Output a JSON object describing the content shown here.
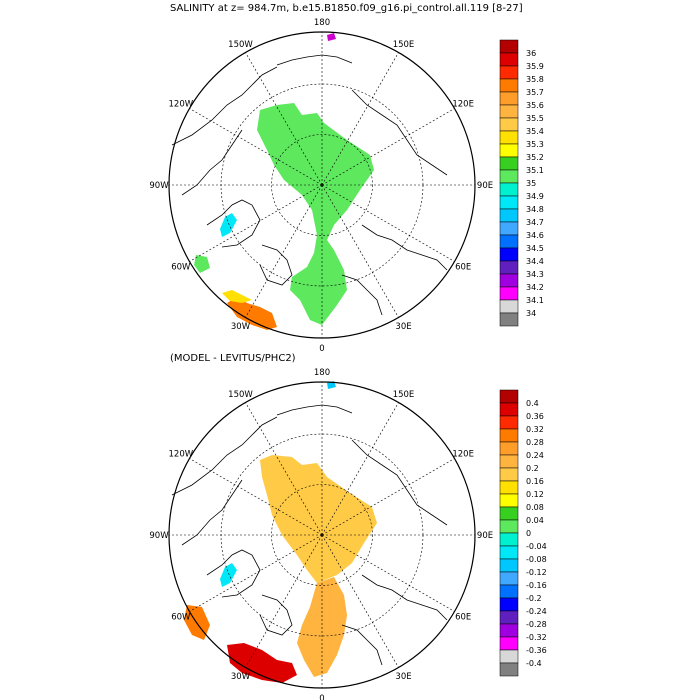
{
  "panels": [
    {
      "title": "SALINITY at z= 984.7m, b.e15.B1850.f09_g16.pi_control.all.119 [8-27]",
      "lon_labels": [
        "180",
        "150E",
        "120E",
        "90E",
        "60E",
        "30E",
        "0",
        "30W",
        "60W",
        "90W",
        "120W",
        "150W"
      ],
      "colorbar": {
        "labels": [
          "36",
          "35.9",
          "35.8",
          "35.7",
          "35.6",
          "35.5",
          "35.4",
          "35.3",
          "35.2",
          "35.1",
          "35",
          "34.9",
          "34.8",
          "34.7",
          "34.6",
          "34.5",
          "34.4",
          "34.3",
          "34.2",
          "34.1",
          "34"
        ],
        "colors": [
          "#b30000",
          "#dd0000",
          "#ff2a00",
          "#ff7b00",
          "#ff9d2a",
          "#ffb440",
          "#ffcb47",
          "#ffe000",
          "#ffff00",
          "#38d020",
          "#5ee85e",
          "#00f0d0",
          "#00e8f8",
          "#00c8ff",
          "#40a8ff",
          "#0070ff",
          "#0000ff",
          "#6020c0",
          "#a000e0",
          "#ff00ff",
          "#d8d8d8",
          "#808080"
        ]
      },
      "fields": [
        {
          "name": "central-arctic",
          "color": "#5ee85e"
        },
        {
          "name": "baffin",
          "color": "#00e8f8"
        },
        {
          "name": "labrador",
          "color": "#5ee85e"
        },
        {
          "name": "atlantic-orange",
          "color": "#ff7b00"
        },
        {
          "name": "atlantic-yellow",
          "color": "#ffe000"
        },
        {
          "name": "pacific-spot",
          "color": "#cc00cc"
        }
      ]
    },
    {
      "title": "(MODEL - LEVITUS/PHC2)",
      "lon_labels": [
        "180",
        "150E",
        "120E",
        "90E",
        "60E",
        "30E",
        "0",
        "30W",
        "60W",
        "90W",
        "120W",
        "150W"
      ],
      "colorbar": {
        "labels": [
          "0.4",
          "0.36",
          "0.32",
          "0.28",
          "0.24",
          "0.2",
          "0.16",
          "0.12",
          "0.08",
          "0.04",
          "0",
          "-0.04",
          "-0.08",
          "-0.12",
          "-0.16",
          "-0.2",
          "-0.24",
          "-0.28",
          "-0.32",
          "-0.36",
          "-0.4"
        ],
        "colors": [
          "#b30000",
          "#dd0000",
          "#ff2a00",
          "#ff7b00",
          "#ff9d2a",
          "#ffb440",
          "#ffcb47",
          "#ffe000",
          "#ffff00",
          "#38d020",
          "#5ee85e",
          "#00f0d0",
          "#00e8f8",
          "#00c8ff",
          "#40a8ff",
          "#0070ff",
          "#0000ff",
          "#6020c0",
          "#a000e0",
          "#ff00ff",
          "#d8d8d8",
          "#808080"
        ]
      },
      "fields": [
        {
          "name": "central-arctic",
          "color": "#ffcb47"
        },
        {
          "name": "eurasian",
          "color": "#ffb440"
        },
        {
          "name": "baffin",
          "color": "#00e8f8"
        },
        {
          "name": "labrador",
          "color": "#ff7b00"
        },
        {
          "name": "atlantic-red",
          "color": "#dd0000"
        },
        {
          "name": "pacific-spot",
          "color": "#00c8ff"
        }
      ]
    }
  ]
}
